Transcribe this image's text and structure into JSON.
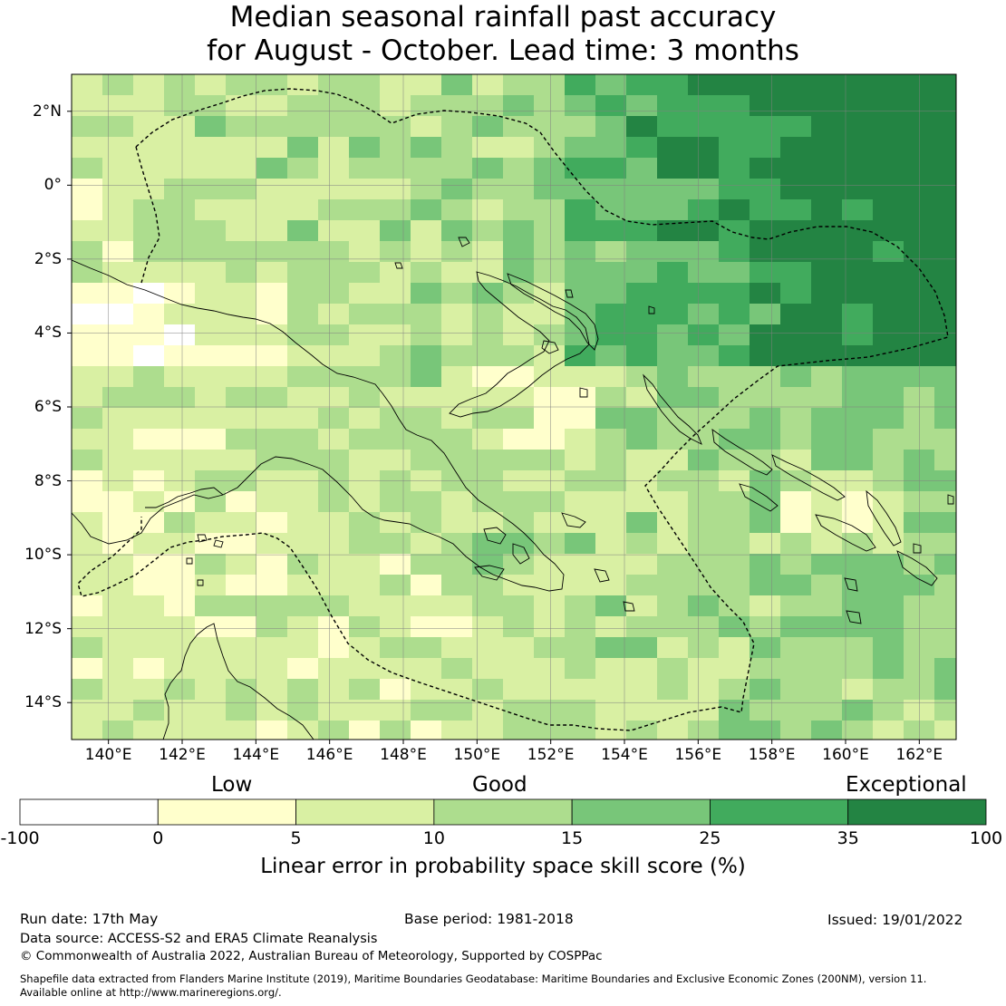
{
  "title_line1": "Median seasonal rainfall past accuracy",
  "title_line2": "for August - October. Lead time: 3 months",
  "map": {
    "lon_range": [
      139,
      163
    ],
    "lat_range": [
      -15,
      3
    ],
    "lon_ticks": [
      "140°E",
      "142°E",
      "144°E",
      "146°E",
      "148°E",
      "150°E",
      "152°E",
      "154°E",
      "156°E",
      "158°E",
      "160°E",
      "162°E"
    ],
    "lat_ticks": [
      "2°N",
      "0°",
      "2°S",
      "4°S",
      "6°S",
      "8°S",
      "10°S",
      "12°S",
      "14°S"
    ],
    "grid": true,
    "coastline_color": "#000000",
    "boundary_style": "dashed"
  },
  "colorbar": {
    "category_low": "Low",
    "category_good": "Good",
    "category_exceptional": "Exceptional",
    "ticks": [
      "-100",
      "0",
      "5",
      "10",
      "15",
      "25",
      "35",
      "100"
    ],
    "colors": [
      "#ffffff",
      "#ffffcc",
      "#d9f0a3",
      "#addd8e",
      "#78c679",
      "#41ab5d",
      "#238443"
    ],
    "label": "Linear error in probability space skill score (%)"
  },
  "footer": {
    "run_date": "Run date: 17th May",
    "base_period": "Base period: 1981-2018",
    "issued": "Issued: 19/01/2022",
    "data_source": "Data source: ACCESS-S2 and ERA5 Climate Reanalysis",
    "copyright": "© Commonwealth of Australia 2022, Australian Bureau of Meteorology, Supported by COSPPac",
    "shapefile_line1": "Shapefile data extracted from Flanders Marine Institute (2019), Maritime Boundaries Geodatabase: Maritime Boundaries and Exclusive Economic Zones (200NM), version 11.",
    "shapefile_line2": "Available online at http://www.marineregions.org/."
  }
}
